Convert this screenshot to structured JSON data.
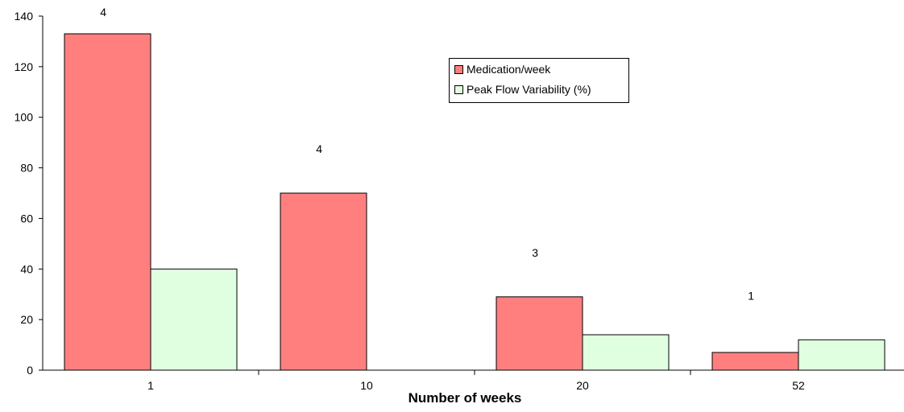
{
  "chart_data": {
    "type": "bar",
    "xlabel": "Number of weeks",
    "ylabel": "",
    "categories": [
      "1",
      "10",
      "20",
      "52"
    ],
    "series": [
      {
        "name": "Medication/week",
        "values": [
          133,
          70,
          29,
          7
        ],
        "color": "#ff7f7f"
      },
      {
        "name": "Peak Flow Variability (%)",
        "values": [
          40,
          null,
          14,
          12
        ],
        "color": "#e0ffe0"
      }
    ],
    "annotations": [
      "4",
      "4",
      "3",
      "1"
    ],
    "ylim": [
      0,
      140
    ],
    "yticks": [
      0,
      20,
      40,
      60,
      80,
      100,
      120,
      140
    ],
    "grid": false,
    "legend_position": "top-center"
  }
}
